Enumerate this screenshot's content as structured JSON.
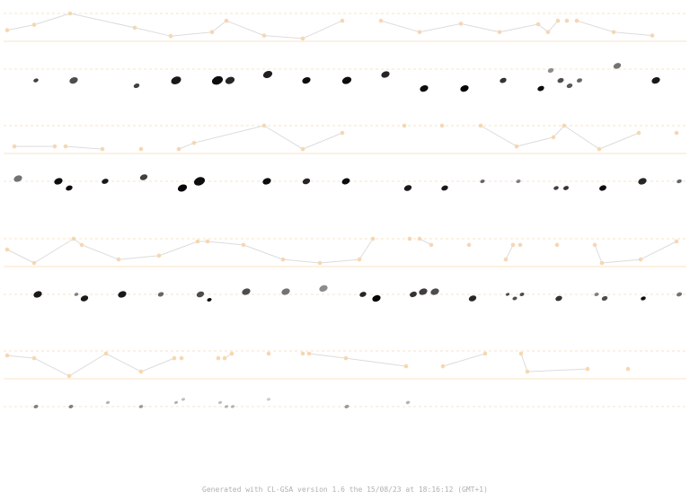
{
  "footer": {
    "text": "Generated with CL-GSA version 1.6 the 15/08/23 at 18:16:12 (GMT+1)"
  },
  "colors": {
    "guide_line": "#f9e3c6",
    "peach_dot": "#f6d7b2",
    "connector": "#dcdcdc",
    "background": "#ffffff"
  },
  "staves": [
    {
      "peach_dots": [
        [
          8,
          0.62
        ],
        [
          38,
          0.42
        ],
        [
          78,
          0.0
        ],
        [
          150,
          0.53
        ],
        [
          190,
          0.84
        ],
        [
          236,
          0.69
        ],
        [
          252,
          0.27
        ],
        [
          294,
          0.82
        ],
        [
          337,
          0.93
        ],
        [
          381,
          0.27
        ],
        [
          424,
          0.27
        ],
        [
          467,
          0.69
        ],
        [
          513,
          0.38
        ],
        [
          556,
          0.69
        ],
        [
          599,
          0.4
        ],
        [
          610,
          0.69
        ],
        [
          621,
          0.27
        ],
        [
          631,
          0.27
        ],
        [
          642,
          0.27
        ],
        [
          683,
          0.69
        ],
        [
          726,
          0.82
        ]
      ],
      "connections": [
        [
          0,
          1
        ],
        [
          1,
          2
        ],
        [
          2,
          3
        ],
        [
          3,
          4
        ],
        [
          4,
          5
        ],
        [
          5,
          6
        ],
        [
          6,
          7
        ],
        [
          7,
          8
        ],
        [
          8,
          9
        ],
        [
          10,
          11
        ],
        [
          11,
          12
        ],
        [
          12,
          13
        ],
        [
          13,
          14
        ],
        [
          14,
          15
        ],
        [
          15,
          16
        ],
        [
          18,
          19
        ],
        [
          19,
          20
        ]
      ],
      "notes": [
        [
          40,
          0.42,
          0.6,
          0.75
        ],
        [
          82,
          0.42,
          1.0,
          0.7
        ],
        [
          152,
          0.62,
          0.7,
          0.75
        ],
        [
          196,
          0.42,
          1.2,
          0.9
        ],
        [
          242,
          0.42,
          1.3,
          0.95
        ],
        [
          256,
          0.42,
          1.1,
          0.85
        ],
        [
          298,
          0.2,
          1.1,
          0.88
        ],
        [
          341,
          0.42,
          1.0,
          0.95
        ],
        [
          386,
          0.42,
          1.1,
          0.95
        ],
        [
          429,
          0.2,
          1.0,
          0.85
        ],
        [
          472,
          0.72,
          1.0,
          0.95
        ],
        [
          517,
          0.72,
          1.0,
          0.98
        ],
        [
          560,
          0.42,
          0.8,
          0.8
        ],
        [
          602,
          0.72,
          0.8,
          0.95
        ],
        [
          613,
          0.05,
          0.7,
          0.45
        ],
        [
          624,
          0.42,
          0.75,
          0.7
        ],
        [
          634,
          0.62,
          0.7,
          0.65
        ],
        [
          645,
          0.42,
          0.65,
          0.6
        ],
        [
          687,
          -0.12,
          0.9,
          0.55
        ],
        [
          730,
          0.42,
          1.0,
          0.9
        ]
      ]
    },
    {
      "peach_dots": [
        [
          16,
          0.77
        ],
        [
          61,
          0.77
        ],
        [
          73,
          0.77
        ],
        [
          114,
          0.87
        ],
        [
          157,
          0.87
        ],
        [
          199,
          0.87
        ],
        [
          216,
          0.64
        ],
        [
          294,
          0.0
        ],
        [
          337,
          0.87
        ],
        [
          381,
          0.27
        ],
        [
          450,
          0.0
        ],
        [
          492,
          0.0
        ],
        [
          535,
          0.0
        ],
        [
          575,
          0.77
        ],
        [
          616,
          0.43
        ],
        [
          628,
          0.0
        ],
        [
          667,
          0.87
        ],
        [
          711,
          0.27
        ],
        [
          753,
          0.27
        ]
      ],
      "connections": [
        [
          0,
          1
        ],
        [
          2,
          3
        ],
        [
          5,
          6
        ],
        [
          6,
          7
        ],
        [
          7,
          8
        ],
        [
          8,
          9
        ],
        [
          12,
          13
        ],
        [
          13,
          14
        ],
        [
          14,
          15
        ],
        [
          15,
          16
        ],
        [
          16,
          17
        ]
      ],
      "notes": [
        [
          20,
          -0.1,
          1.0,
          0.55
        ],
        [
          65,
          0.0,
          1.0,
          0.95
        ],
        [
          77,
          0.25,
          0.8,
          0.95
        ],
        [
          117,
          0.0,
          0.8,
          0.9
        ],
        [
          160,
          -0.15,
          0.9,
          0.75
        ],
        [
          203,
          0.25,
          1.1,
          0.98
        ],
        [
          222,
          0.0,
          1.3,
          0.95
        ],
        [
          297,
          0.0,
          1.0,
          0.95
        ],
        [
          341,
          0.0,
          0.9,
          0.85
        ],
        [
          385,
          0.0,
          0.95,
          0.95
        ],
        [
          454,
          0.25,
          0.9,
          0.9
        ],
        [
          495,
          0.25,
          0.8,
          0.9
        ],
        [
          537,
          0.0,
          0.55,
          0.6
        ],
        [
          577,
          0.0,
          0.55,
          0.5
        ],
        [
          619,
          0.25,
          0.6,
          0.75
        ],
        [
          630,
          0.25,
          0.65,
          0.8
        ],
        [
          671,
          0.25,
          0.85,
          0.95
        ],
        [
          715,
          0.0,
          1.0,
          0.85
        ],
        [
          756,
          0.0,
          0.6,
          0.6
        ]
      ]
    },
    {
      "peach_dots": [
        [
          8,
          0.4
        ],
        [
          38,
          0.9
        ],
        [
          82,
          0.0
        ],
        [
          91,
          0.23
        ],
        [
          132,
          0.77
        ],
        [
          177,
          0.63
        ],
        [
          220,
          0.1
        ],
        [
          231,
          0.1
        ],
        [
          271,
          0.23
        ],
        [
          315,
          0.77
        ],
        [
          356,
          0.9
        ],
        [
          400,
          0.77
        ],
        [
          415,
          0.0
        ],
        [
          456,
          0.0
        ],
        [
          467,
          0.0
        ],
        [
          480,
          0.23
        ],
        [
          522,
          0.23
        ],
        [
          563,
          0.77
        ],
        [
          571,
          0.23
        ],
        [
          579,
          0.23
        ],
        [
          620,
          0.23
        ],
        [
          662,
          0.23
        ],
        [
          670,
          0.9
        ],
        [
          713,
          0.77
        ],
        [
          753,
          0.1
        ]
      ],
      "connections": [
        [
          0,
          1
        ],
        [
          1,
          2
        ],
        [
          2,
          3
        ],
        [
          3,
          4
        ],
        [
          4,
          5
        ],
        [
          5,
          6
        ],
        [
          6,
          7
        ],
        [
          7,
          8
        ],
        [
          8,
          9
        ],
        [
          9,
          10
        ],
        [
          10,
          11
        ],
        [
          11,
          12
        ],
        [
          14,
          15
        ],
        [
          17,
          18
        ],
        [
          21,
          22
        ],
        [
          22,
          23
        ],
        [
          23,
          24
        ]
      ],
      "notes": [
        [
          42,
          0.0,
          1.0,
          0.9
        ],
        [
          85,
          0.0,
          0.5,
          0.5
        ],
        [
          94,
          0.15,
          0.9,
          0.9
        ],
        [
          136,
          0.0,
          1.0,
          0.9
        ],
        [
          179,
          0.0,
          0.7,
          0.6
        ],
        [
          223,
          0.0,
          0.9,
          0.7
        ],
        [
          233,
          0.2,
          0.55,
          0.95
        ],
        [
          274,
          -0.1,
          1.0,
          0.7
        ],
        [
          318,
          -0.1,
          1.0,
          0.55
        ],
        [
          360,
          -0.22,
          1.0,
          0.45
        ],
        [
          404,
          0.0,
          0.8,
          0.85
        ],
        [
          419,
          0.15,
          1.0,
          0.98
        ],
        [
          460,
          0.0,
          0.85,
          0.8
        ],
        [
          471,
          -0.1,
          1.0,
          0.75
        ],
        [
          484,
          -0.1,
          1.0,
          0.7
        ],
        [
          526,
          0.15,
          0.9,
          0.85
        ],
        [
          565,
          0.0,
          0.45,
          0.7
        ],
        [
          573,
          0.15,
          0.55,
          0.7
        ],
        [
          581,
          0.0,
          0.55,
          0.7
        ],
        [
          622,
          0.15,
          0.8,
          0.8
        ],
        [
          664,
          0.0,
          0.55,
          0.5
        ],
        [
          673,
          0.15,
          0.7,
          0.7
        ],
        [
          716,
          0.15,
          0.6,
          0.95
        ],
        [
          756,
          0.0,
          0.65,
          0.55
        ]
      ]
    },
    {
      "peach_dots": [
        [
          8,
          0.17
        ],
        [
          38,
          0.27
        ],
        [
          77,
          0.93
        ],
        [
          118,
          0.1
        ],
        [
          157,
          0.77
        ],
        [
          194,
          0.27
        ],
        [
          202,
          0.27
        ],
        [
          243,
          0.27
        ],
        [
          250,
          0.27
        ],
        [
          258,
          0.1
        ],
        [
          299,
          0.1
        ],
        [
          337,
          0.1
        ],
        [
          344,
          0.1
        ],
        [
          385,
          0.27
        ],
        [
          452,
          0.57
        ],
        [
          493,
          0.57
        ],
        [
          540,
          0.1
        ],
        [
          580,
          0.1
        ],
        [
          587,
          0.77
        ],
        [
          654,
          0.67
        ],
        [
          699,
          0.67
        ]
      ],
      "connections": [
        [
          0,
          1
        ],
        [
          1,
          2
        ],
        [
          2,
          3
        ],
        [
          3,
          4
        ],
        [
          4,
          5
        ],
        [
          8,
          9
        ],
        [
          12,
          13
        ],
        [
          13,
          14
        ],
        [
          15,
          16
        ],
        [
          17,
          18
        ],
        [
          18,
          19
        ]
      ],
      "notes": [
        [
          40,
          0.0,
          0.55,
          0.5
        ],
        [
          79,
          0.0,
          0.55,
          0.5
        ],
        [
          120,
          -0.15,
          0.45,
          0.3
        ],
        [
          157,
          0.0,
          0.5,
          0.4
        ],
        [
          196,
          -0.15,
          0.45,
          0.3
        ],
        [
          204,
          -0.27,
          0.45,
          0.25
        ],
        [
          245,
          -0.15,
          0.45,
          0.25
        ],
        [
          252,
          0.0,
          0.45,
          0.3
        ],
        [
          259,
          0.0,
          0.45,
          0.3
        ],
        [
          299,
          -0.27,
          0.45,
          0.2
        ],
        [
          386,
          0.0,
          0.55,
          0.4
        ],
        [
          454,
          -0.15,
          0.5,
          0.3
        ]
      ]
    }
  ]
}
